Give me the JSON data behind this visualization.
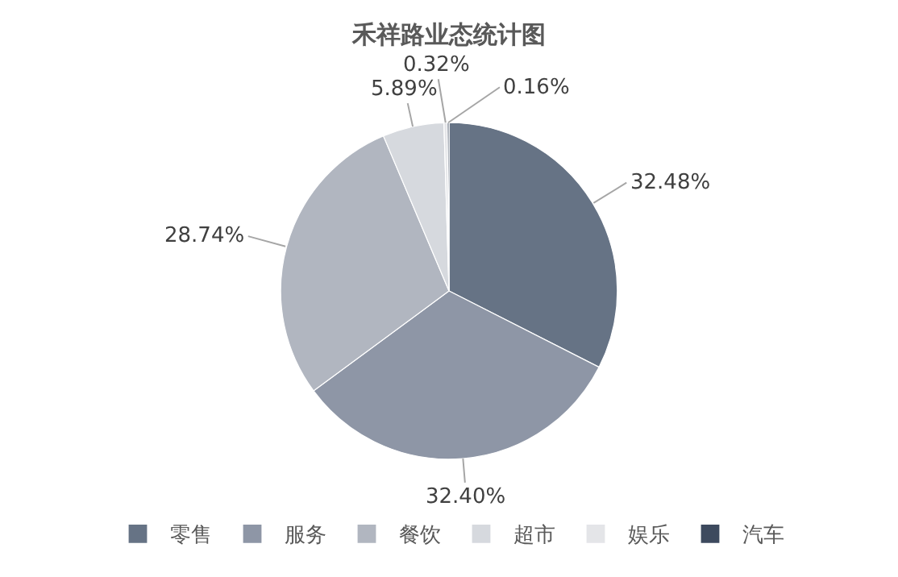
{
  "chart_data": {
    "type": "pie",
    "title": "禾祥路业态统计图",
    "categories": [
      "零售",
      "服务",
      "餐饮",
      "超市",
      "娱乐",
      "汽车"
    ],
    "values": [
      32.48,
      32.4,
      28.74,
      5.89,
      0.32,
      0.16
    ],
    "value_labels": [
      "32.48%",
      "32.40%",
      "28.74%",
      "5.89%",
      "0.32%",
      "0.16%"
    ],
    "colors": [
      "#667385",
      "#8e96a6",
      "#b1b6c0",
      "#d6d9de",
      "#e4e5e8",
      "#3d4a5e"
    ],
    "legend": "bottom"
  }
}
